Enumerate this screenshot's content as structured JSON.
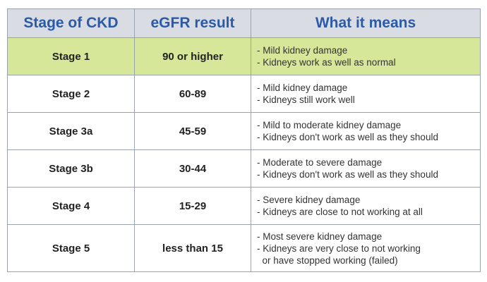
{
  "headers": {
    "stage": "Stage of CKD",
    "egfr": "eGFR result",
    "meaning": "What it means"
  },
  "colors": {
    "header_text": "#2a5aa8",
    "header_bg": "#d9dde3",
    "highlight_row": "#d6e79a"
  },
  "rows": [
    {
      "stage": "Stage 1",
      "egfr": "90 or higher",
      "meaning": [
        "- Mild kidney damage",
        "- Kidneys work as well as normal"
      ]
    },
    {
      "stage": "Stage 2",
      "egfr": "60-89",
      "meaning": [
        "- Mild kidney damage",
        "- Kidneys still work well"
      ]
    },
    {
      "stage": "Stage 3a",
      "egfr": "45-59",
      "meaning": [
        "- Mild to moderate kidney damage",
        "- Kidneys don't work as well as they should"
      ]
    },
    {
      "stage": "Stage 3b",
      "egfr": "30-44",
      "meaning": [
        "- Moderate to severe damage",
        "- Kidneys don't work as well as they should"
      ]
    },
    {
      "stage": "Stage 4",
      "egfr": "15-29",
      "meaning": [
        "- Severe kidney damage",
        "- Kidneys are close to not working at all"
      ]
    },
    {
      "stage": "Stage 5",
      "egfr": "less than 15",
      "meaning": [
        "- Most severe kidney damage",
        "- Kidneys are very close to not working",
        "  or have stopped working (failed)"
      ]
    }
  ]
}
